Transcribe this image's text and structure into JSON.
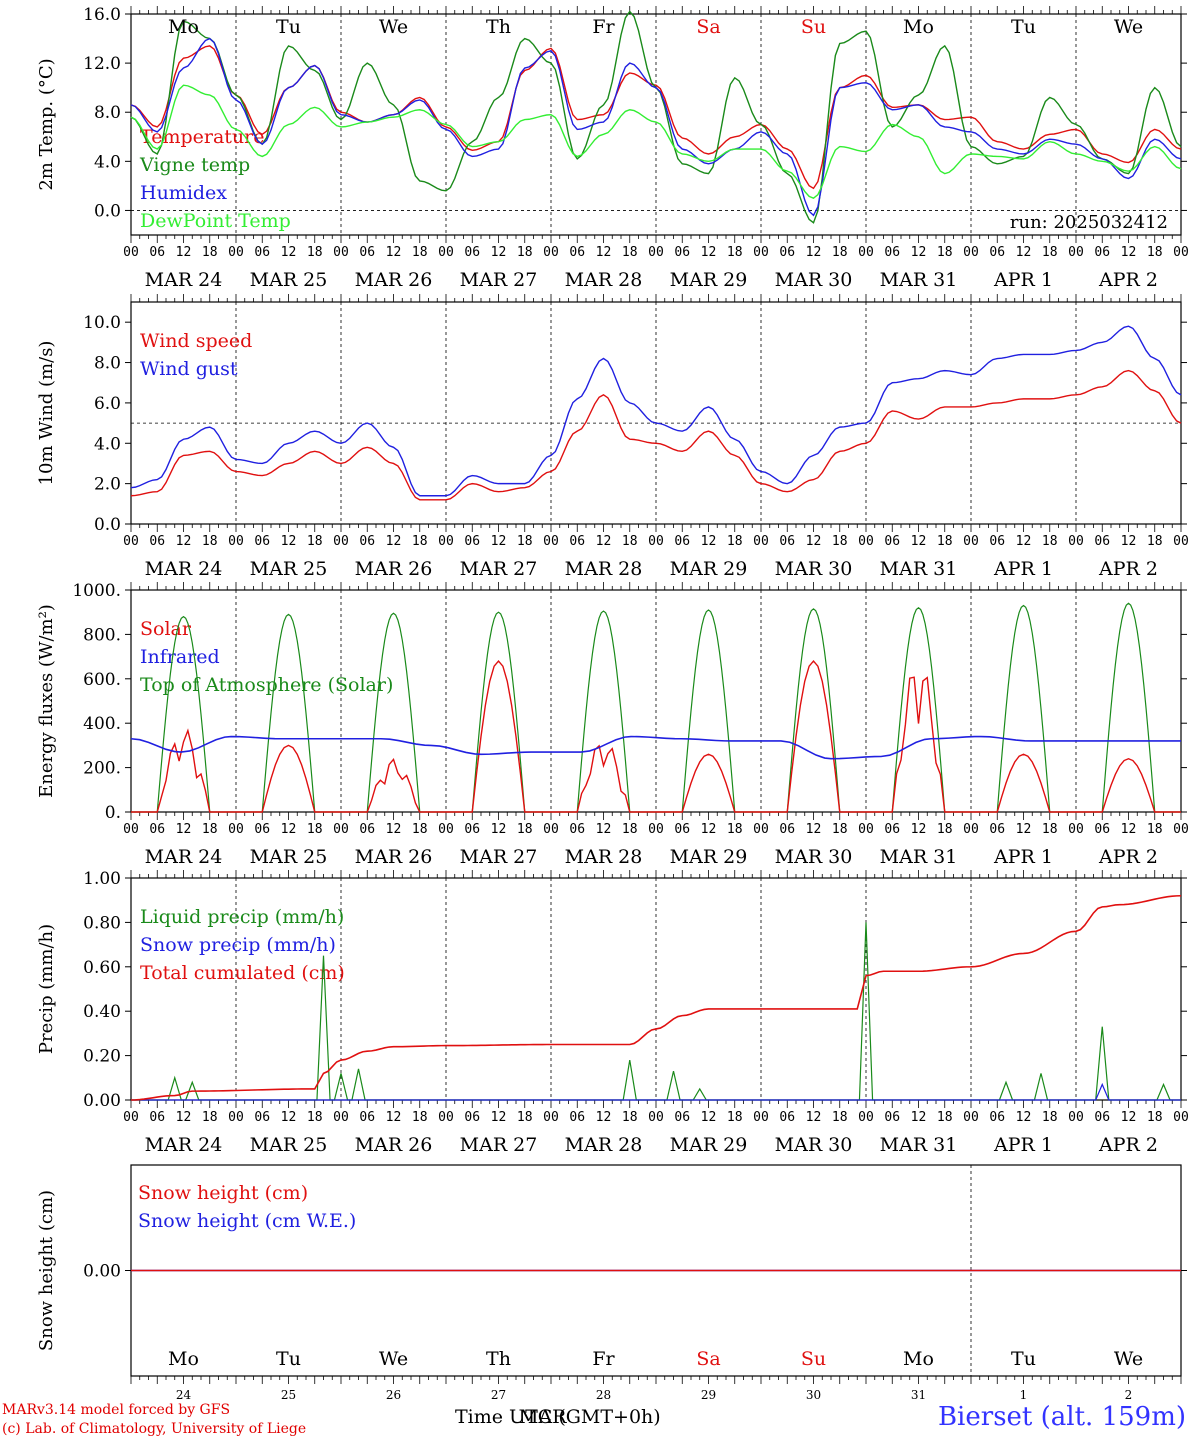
{
  "colors": {
    "red": "#e01010",
    "green": "#1a8a1a",
    "blue": "#2020e0",
    "lightgreen": "#33ee33",
    "axis": "#000000"
  },
  "days": [
    "MAR 24",
    "MAR 25",
    "MAR 26",
    "MAR 27",
    "MAR 28",
    "MAR 29",
    "MAR 30",
    "MAR 31",
    "APR  1",
    "APR  2"
  ],
  "weekdays": [
    "Mo",
    "Tu",
    "We",
    "Th",
    "Fr",
    "Sa",
    "Su",
    "Mo",
    "Tu",
    "We"
  ],
  "weekend_indices": [
    5,
    6
  ],
  "hour_ticks": [
    "00",
    "06",
    "12",
    "18"
  ],
  "final_tick": "00",
  "bottom_day_numbers": [
    "24",
    "25",
    "26",
    "27",
    "28",
    "29",
    "30",
    "31",
    "1",
    "2"
  ],
  "footer": {
    "model": "MARv3.14 model forced by GFS",
    "lab": "(c) Lab. of Climatology, University of Liege",
    "time_label": "Time UTC (GMT+0h)",
    "time_overlap": "MAR",
    "station": "Bierset (alt. 159m)"
  },
  "chart_data": [
    {
      "type": "line",
      "ylabel": "2m Temp. (°C)",
      "ylim": [
        -2,
        16
      ],
      "yticks": [
        "0.0",
        "4.0",
        "8.0",
        "12.0",
        "16.0"
      ],
      "ytick_values": [
        0,
        4,
        8,
        12,
        16
      ],
      "ref_line": 0,
      "annotation": "run: 2025032412",
      "x_hours": [
        0,
        6,
        12,
        18,
        24,
        30,
        36,
        42,
        48,
        54,
        60,
        66,
        72,
        78,
        84,
        90,
        96,
        102,
        108,
        114,
        120,
        126,
        132,
        138,
        144,
        150,
        156,
        162,
        168,
        174,
        180,
        186,
        192,
        198,
        204,
        210,
        216,
        222,
        228,
        234,
        240
      ],
      "series": [
        {
          "name": "Temperature",
          "color": "red",
          "values": [
            8.6,
            6.8,
            12.4,
            13.4,
            9.4,
            6.2,
            10.0,
            11.8,
            8.0,
            7.2,
            7.8,
            9.2,
            6.8,
            4.9,
            5.6,
            11.4,
            13.2,
            7.4,
            7.8,
            11.2,
            10.2,
            5.9,
            4.6,
            6.0,
            7.0,
            5.0,
            1.8,
            10.0,
            11.0,
            8.4,
            8.6,
            7.4,
            7.6,
            5.6,
            5.0,
            6.2,
            6.6,
            4.6,
            3.9,
            6.6,
            5.0
          ]
        },
        {
          "name": "Vigne temp",
          "color": "green",
          "values": [
            7.6,
            4.6,
            15.4,
            14.0,
            9.4,
            5.4,
            13.4,
            11.4,
            7.4,
            12.0,
            8.6,
            2.4,
            1.6,
            5.6,
            9.2,
            14.0,
            12.0,
            4.2,
            8.6,
            16.2,
            10.0,
            3.8,
            3.0,
            10.8,
            7.0,
            3.0,
            -1.0,
            13.6,
            14.6,
            6.8,
            9.4,
            13.4,
            5.2,
            3.8,
            4.4,
            9.2,
            7.0,
            4.2,
            3.0,
            10.0,
            5.2
          ]
        },
        {
          "name": "Humidex",
          "color": "blue",
          "values": [
            8.6,
            6.4,
            11.6,
            14.0,
            9.0,
            5.4,
            10.0,
            11.8,
            7.8,
            7.2,
            7.8,
            9.0,
            6.6,
            4.4,
            5.0,
            11.6,
            13.0,
            6.6,
            7.2,
            12.0,
            10.0,
            5.0,
            3.8,
            5.0,
            6.4,
            4.6,
            -0.4,
            10.0,
            10.4,
            8.2,
            8.6,
            6.8,
            6.4,
            5.0,
            4.6,
            5.8,
            5.4,
            4.2,
            2.6,
            5.8,
            4.2
          ]
        },
        {
          "name": "DewPoint Temp",
          "color": "lightgreen",
          "values": [
            7.6,
            5.0,
            10.2,
            9.4,
            6.6,
            4.4,
            7.0,
            8.4,
            6.8,
            7.2,
            7.6,
            8.2,
            7.0,
            5.2,
            5.6,
            7.4,
            7.8,
            4.4,
            6.2,
            8.2,
            7.2,
            4.6,
            4.0,
            5.0,
            5.0,
            3.2,
            1.0,
            5.2,
            4.8,
            7.0,
            6.0,
            3.0,
            4.6,
            4.4,
            4.2,
            5.6,
            4.6,
            4.0,
            3.2,
            5.2,
            3.4
          ]
        }
      ]
    },
    {
      "type": "line",
      "ylabel": "10m Wind (m/s)",
      "ylim": [
        0,
        11
      ],
      "yticks": [
        "0.0",
        "2.0",
        "4.0",
        "6.0",
        "8.0",
        "10.0"
      ],
      "ytick_values": [
        0,
        2,
        4,
        6,
        8,
        10
      ],
      "ref_line": 5,
      "x_hours": [
        0,
        6,
        12,
        18,
        24,
        30,
        36,
        42,
        48,
        54,
        60,
        66,
        72,
        78,
        84,
        90,
        96,
        102,
        108,
        114,
        120,
        126,
        132,
        138,
        144,
        150,
        156,
        162,
        168,
        174,
        180,
        186,
        192,
        198,
        204,
        210,
        216,
        222,
        228,
        234,
        240
      ],
      "series": [
        {
          "name": "Wind speed",
          "color": "red",
          "values": [
            1.4,
            1.6,
            3.4,
            3.6,
            2.6,
            2.4,
            3.0,
            3.6,
            3.0,
            3.8,
            3.0,
            1.2,
            1.2,
            2.0,
            1.6,
            1.8,
            2.6,
            4.6,
            6.4,
            4.2,
            4.0,
            3.6,
            4.6,
            3.4,
            2.0,
            1.6,
            2.2,
            3.6,
            4.0,
            5.6,
            5.2,
            5.8,
            5.8,
            6.0,
            6.2,
            6.2,
            6.4,
            6.8,
            7.6,
            6.6,
            5.0
          ]
        },
        {
          "name": "Wind gust",
          "color": "blue",
          "values": [
            1.8,
            2.2,
            4.2,
            4.8,
            3.2,
            3.0,
            4.0,
            4.6,
            4.0,
            5.0,
            3.8,
            1.4,
            1.4,
            2.4,
            2.0,
            2.0,
            3.4,
            6.2,
            8.2,
            6.0,
            5.0,
            4.6,
            5.8,
            4.2,
            2.6,
            2.0,
            3.4,
            4.8,
            5.0,
            7.0,
            7.2,
            7.6,
            7.4,
            8.2,
            8.4,
            8.4,
            8.6,
            9.0,
            9.8,
            8.2,
            6.4
          ]
        }
      ]
    },
    {
      "type": "line",
      "ylabel": "Energy fluxes (W/m²)",
      "ylim": [
        0,
        1000
      ],
      "yticks": [
        "0.",
        "200.",
        "400.",
        "600.",
        "800.",
        "1000."
      ],
      "ytick_values": [
        0,
        200,
        400,
        600,
        800,
        1000
      ],
      "series": [
        {
          "name": "Solar",
          "color": "red",
          "peaks": [
            380,
            300,
            240,
            680,
            330,
            260,
            680,
            700,
            260,
            240
          ]
        },
        {
          "name": "Infrared",
          "color": "blue",
          "values": [
            330,
            270,
            340,
            330,
            330,
            330,
            300,
            260,
            270,
            270,
            340,
            330,
            320,
            320,
            240,
            250,
            330,
            340,
            320,
            320,
            320,
            320
          ]
        },
        {
          "name": "Top of Atmosphere (Solar)",
          "color": "green",
          "peaks": [
            880,
            890,
            895,
            900,
            905,
            910,
            915,
            920,
            930,
            940
          ]
        }
      ]
    },
    {
      "type": "line",
      "ylabel": "Precip (mm/h)",
      "ylim": [
        0,
        1.0
      ],
      "yticks": [
        "0.00",
        "0.20",
        "0.40",
        "0.60",
        "0.80",
        "1.00"
      ],
      "ytick_values": [
        0,
        0.2,
        0.4,
        0.6,
        0.8,
        1.0
      ],
      "series": [
        {
          "name": "Liquid precip (mm/h)",
          "color": "green",
          "spikes": [
            [
              10,
              0.1
            ],
            [
              14,
              0.08
            ],
            [
              44,
              0.65
            ],
            [
              48,
              0.12
            ],
            [
              52,
              0.14
            ],
            [
              114,
              0.18
            ],
            [
              124,
              0.13
            ],
            [
              130,
              0.05
            ],
            [
              168,
              0.8
            ],
            [
              200,
              0.08
            ],
            [
              208,
              0.12
            ],
            [
              222,
              0.33
            ],
            [
              236,
              0.07
            ]
          ]
        },
        {
          "name": "Snow precip (mm/h)",
          "color": "blue",
          "spikes": [
            [
              222,
              0.07
            ]
          ]
        },
        {
          "name": "Total cumulated (cm)",
          "color": "red",
          "x_hours": [
            0,
            10,
            14,
            42,
            44,
            48,
            54,
            60,
            72,
            96,
            114,
            120,
            126,
            132,
            144,
            156,
            166,
            168,
            172,
            180,
            192,
            204,
            216,
            222,
            226,
            240
          ],
          "values": [
            0,
            0.02,
            0.04,
            0.05,
            0.12,
            0.18,
            0.22,
            0.24,
            0.245,
            0.25,
            0.25,
            0.32,
            0.38,
            0.41,
            0.41,
            0.41,
            0.41,
            0.56,
            0.58,
            0.58,
            0.6,
            0.66,
            0.76,
            0.87,
            0.88,
            0.92
          ]
        }
      ]
    },
    {
      "type": "line",
      "ylabel": "Snow height (cm)",
      "ylim": [
        -1,
        1
      ],
      "yticks": [
        "0.00"
      ],
      "ytick_values": [
        0
      ],
      "series": [
        {
          "name": "Snow height (cm)",
          "color": "red",
          "values": [
            0,
            0
          ]
        },
        {
          "name": "Snow height (cm W.E.)",
          "color": "blue",
          "values": [
            0,
            0
          ]
        }
      ]
    }
  ]
}
